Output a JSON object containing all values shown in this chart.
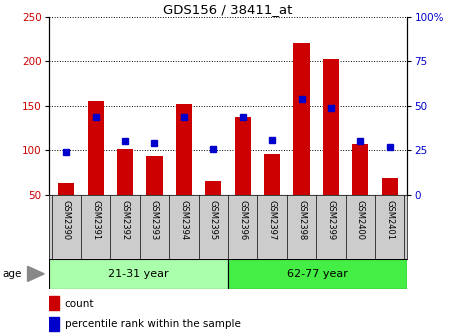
{
  "title": "GDS156 / 38411_at",
  "samples": [
    "GSM2390",
    "GSM2391",
    "GSM2392",
    "GSM2393",
    "GSM2394",
    "GSM2395",
    "GSM2396",
    "GSM2397",
    "GSM2398",
    "GSM2399",
    "GSM2400",
    "GSM2401"
  ],
  "counts": [
    63,
    155,
    101,
    94,
    152,
    66,
    138,
    96,
    221,
    203,
    107,
    69
  ],
  "percentiles": [
    24,
    44,
    30,
    29,
    44,
    26,
    44,
    31,
    54,
    49,
    30,
    27
  ],
  "bar_color": "#cc0000",
  "dot_color": "#0000cc",
  "ylim_left": [
    50,
    250
  ],
  "ylim_right": [
    0,
    100
  ],
  "yticks_left": [
    50,
    100,
    150,
    200,
    250
  ],
  "yticks_right": [
    0,
    25,
    50,
    75,
    100
  ],
  "ytick_labels_right": [
    "0",
    "25",
    "50",
    "75",
    "100%"
  ],
  "group1_label": "21-31 year",
  "group2_label": "62-77 year",
  "group1_color": "#aaffaa",
  "group2_color": "#44ee44",
  "age_label": "age",
  "legend_count": "count",
  "legend_percentile": "percentile rank within the sample",
  "tick_label_color_left": "#cc0000",
  "tick_label_color_right": "#0000cc",
  "tick_label_gray": "#888888",
  "label_area_color": "#cccccc",
  "grid_color": "#000000"
}
